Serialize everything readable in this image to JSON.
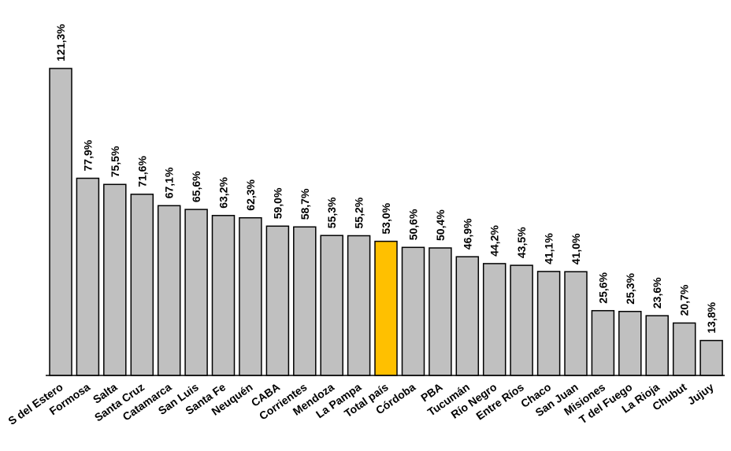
{
  "chart_data": {
    "type": "bar",
    "categories": [
      "S del Estero",
      "Formosa",
      "Salta",
      "Santa Cruz",
      "Catamarca",
      "San Luis",
      "Santa Fe",
      "Neuquén",
      "CABA",
      "Corrientes",
      "Mendoza",
      "La Pampa",
      "Total país",
      "Córdoba",
      "PBA",
      "Tucumán",
      "Río Negro",
      "Entre Ríos",
      "Chaco",
      "San Juan",
      "Misiones",
      "T del Fuego",
      "La Rioja",
      "Chubut",
      "Jujuy"
    ],
    "values": [
      121.3,
      77.9,
      75.5,
      71.6,
      67.1,
      65.6,
      63.2,
      62.3,
      59.0,
      58.7,
      55.3,
      55.2,
      53.0,
      50.6,
      50.4,
      46.9,
      44.2,
      43.5,
      41.1,
      41.0,
      25.6,
      25.3,
      23.6,
      20.7,
      13.8
    ],
    "labels": [
      "121,3%",
      "77,9%",
      "75,5%",
      "71,6%",
      "67,1%",
      "65,6%",
      "63,2%",
      "62,3%",
      "59,0%",
      "58,7%",
      "55,3%",
      "55,2%",
      "53,0%",
      "50,6%",
      "50,4%",
      "46,9%",
      "44,2%",
      "43,5%",
      "41,1%",
      "41,0%",
      "25,6%",
      "25,3%",
      "23,6%",
      "20,7%",
      "13,8%"
    ],
    "highlight": "Total país",
    "colors": {
      "default": "#c0c0c0",
      "highlight": "#ffc000",
      "outline": "#000000"
    },
    "ylim": [
      0,
      121.3
    ],
    "grid": false,
    "legend": "none"
  }
}
